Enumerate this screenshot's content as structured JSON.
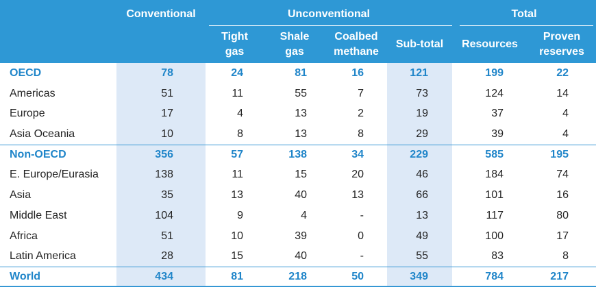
{
  "colors": {
    "header_background": "#2e98d5",
    "group_text": "#1f85c9",
    "shaded_column": "#dde9f7",
    "rule": "#3597d4"
  },
  "chart_data": {
    "type": "table",
    "header_groups": [
      "Conventional",
      "Unconventional",
      "Total"
    ],
    "columns": [
      "Tight gas",
      "Shale gas",
      "Coalbed methane",
      "Sub-total",
      "Resources",
      "Proven reserves"
    ],
    "groups": [
      {
        "label": "OECD",
        "values": [
          78,
          24,
          81,
          16,
          121,
          199,
          22
        ],
        "rows": [
          {
            "label": "Americas",
            "values": [
              51,
              11,
              55,
              7,
              73,
              124,
              14
            ]
          },
          {
            "label": "Europe",
            "values": [
              17,
              4,
              13,
              2,
              19,
              37,
              4
            ]
          },
          {
            "label": "Asia Oceania",
            "values": [
              10,
              8,
              13,
              8,
              29,
              39,
              4
            ]
          }
        ]
      },
      {
        "label": "Non-OECD",
        "values": [
          356,
          57,
          138,
          34,
          229,
          585,
          195
        ],
        "rows": [
          {
            "label": "E. Europe/Eurasia",
            "values": [
              138,
              11,
              15,
              20,
              46,
              184,
              74
            ]
          },
          {
            "label": "Asia",
            "values": [
              35,
              13,
              40,
              13,
              66,
              101,
              16
            ]
          },
          {
            "label": "Middle East",
            "values": [
              104,
              9,
              4,
              "-",
              13,
              117,
              80
            ]
          },
          {
            "label": "Africa",
            "values": [
              51,
              10,
              39,
              0,
              49,
              100,
              17
            ]
          },
          {
            "label": "Latin America",
            "values": [
              28,
              15,
              40,
              "-",
              55,
              83,
              8
            ]
          }
        ]
      }
    ],
    "total": {
      "label": "World",
      "values": [
        434,
        81,
        218,
        50,
        349,
        784,
        217
      ]
    }
  }
}
